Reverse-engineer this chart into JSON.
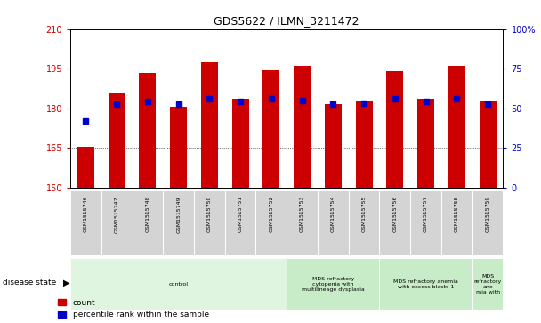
{
  "title": "GDS5622 / ILMN_3211472",
  "samples": [
    "GSM1515746",
    "GSM1515747",
    "GSM1515748",
    "GSM1515749",
    "GSM1515750",
    "GSM1515751",
    "GSM1515752",
    "GSM1515753",
    "GSM1515754",
    "GSM1515755",
    "GSM1515756",
    "GSM1515757",
    "GSM1515758",
    "GSM1515759"
  ],
  "count_values": [
    165.5,
    186.0,
    193.5,
    180.5,
    197.5,
    183.5,
    194.5,
    196.0,
    181.5,
    183.0,
    194.0,
    183.5,
    196.0,
    183.0
  ],
  "blue_values": [
    175.0,
    181.5,
    182.5,
    181.5,
    183.5,
    182.5,
    183.5,
    183.0,
    181.5,
    182.0,
    183.5,
    182.5,
    183.5,
    181.5
  ],
  "ylim_left": [
    150,
    210
  ],
  "ylim_right": [
    0,
    100
  ],
  "yticks_left": [
    150,
    165,
    180,
    195,
    210
  ],
  "yticks_right": [
    0,
    25,
    50,
    75,
    100
  ],
  "ytick_labels_left": [
    "150",
    "165",
    "180",
    "195",
    "210"
  ],
  "ytick_labels_right": [
    "0",
    "25",
    "50",
    "75",
    "100%"
  ],
  "bar_color": "#cc0000",
  "dot_color": "#0000cc",
  "bar_bottom": 150,
  "bar_width": 0.55,
  "disease_groups": [
    {
      "label": "control",
      "start": 0,
      "end": 7,
      "color": "#e0f5e0"
    },
    {
      "label": "MDS refractory\ncytopenia with\nmultilineage dysplasia",
      "start": 7,
      "end": 10,
      "color": "#c8ecc8"
    },
    {
      "label": "MDS refractory anemia\nwith excess blasts-1",
      "start": 10,
      "end": 13,
      "color": "#c8ecc8"
    },
    {
      "label": "MDS\nrefractory\nane\nmia with",
      "start": 13,
      "end": 14,
      "color": "#c8ecc8"
    }
  ],
  "bar_color_legend": "#cc0000",
  "dot_color_legend": "#0000cc",
  "legend_label_count": "count",
  "legend_label_pct": "percentile rank within the sample",
  "background_color": "#ffffff",
  "plot_bg_color": "#ffffff"
}
